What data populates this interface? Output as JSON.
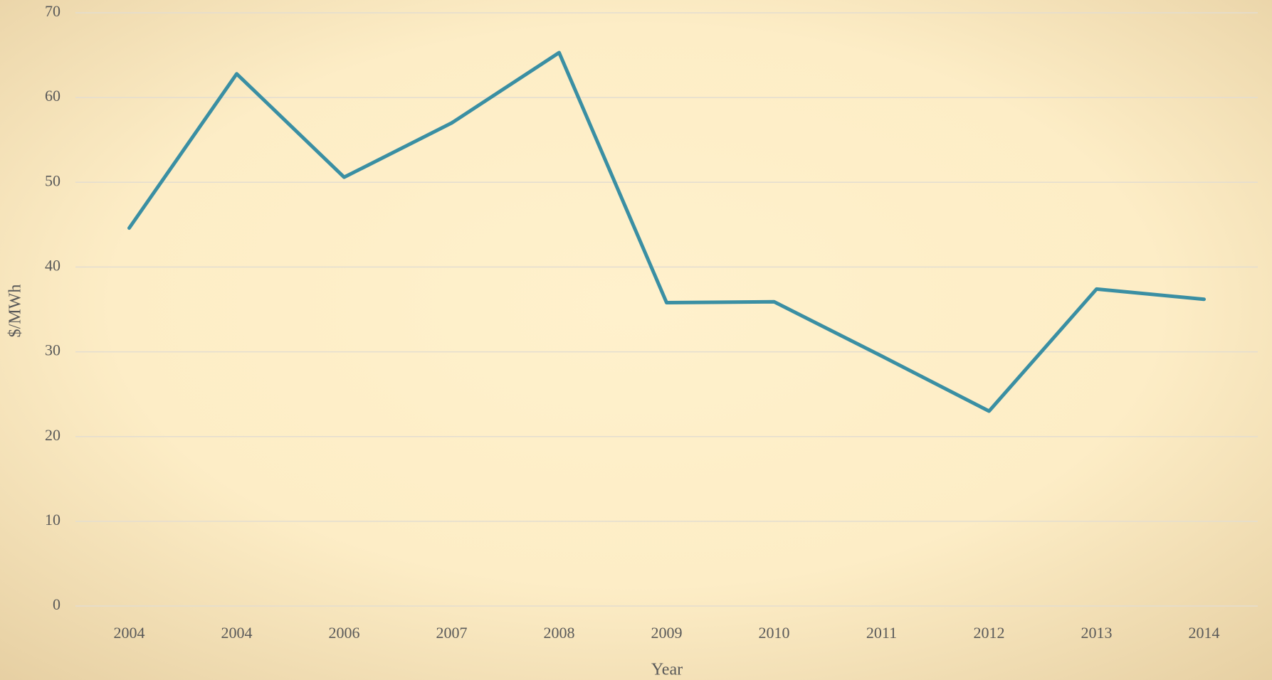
{
  "chart_data": {
    "type": "line",
    "x_label": "Year",
    "y_label": "$/MWh",
    "categories": [
      "2004",
      "2004",
      "2006",
      "2007",
      "2008",
      "2009",
      "2010",
      "2011",
      "2012",
      "2013",
      "2014"
    ],
    "series": [
      {
        "color": "#3a8fa3",
        "values": [
          44.6,
          62.8,
          50.6,
          57.0,
          65.3,
          35.8,
          35.9,
          29.5,
          23.0,
          37.4,
          36.2
        ]
      }
    ],
    "ylim": [
      0,
      70
    ],
    "yticks": [
      0,
      10,
      20,
      30,
      40,
      50,
      60,
      70
    ],
    "grid": true
  }
}
